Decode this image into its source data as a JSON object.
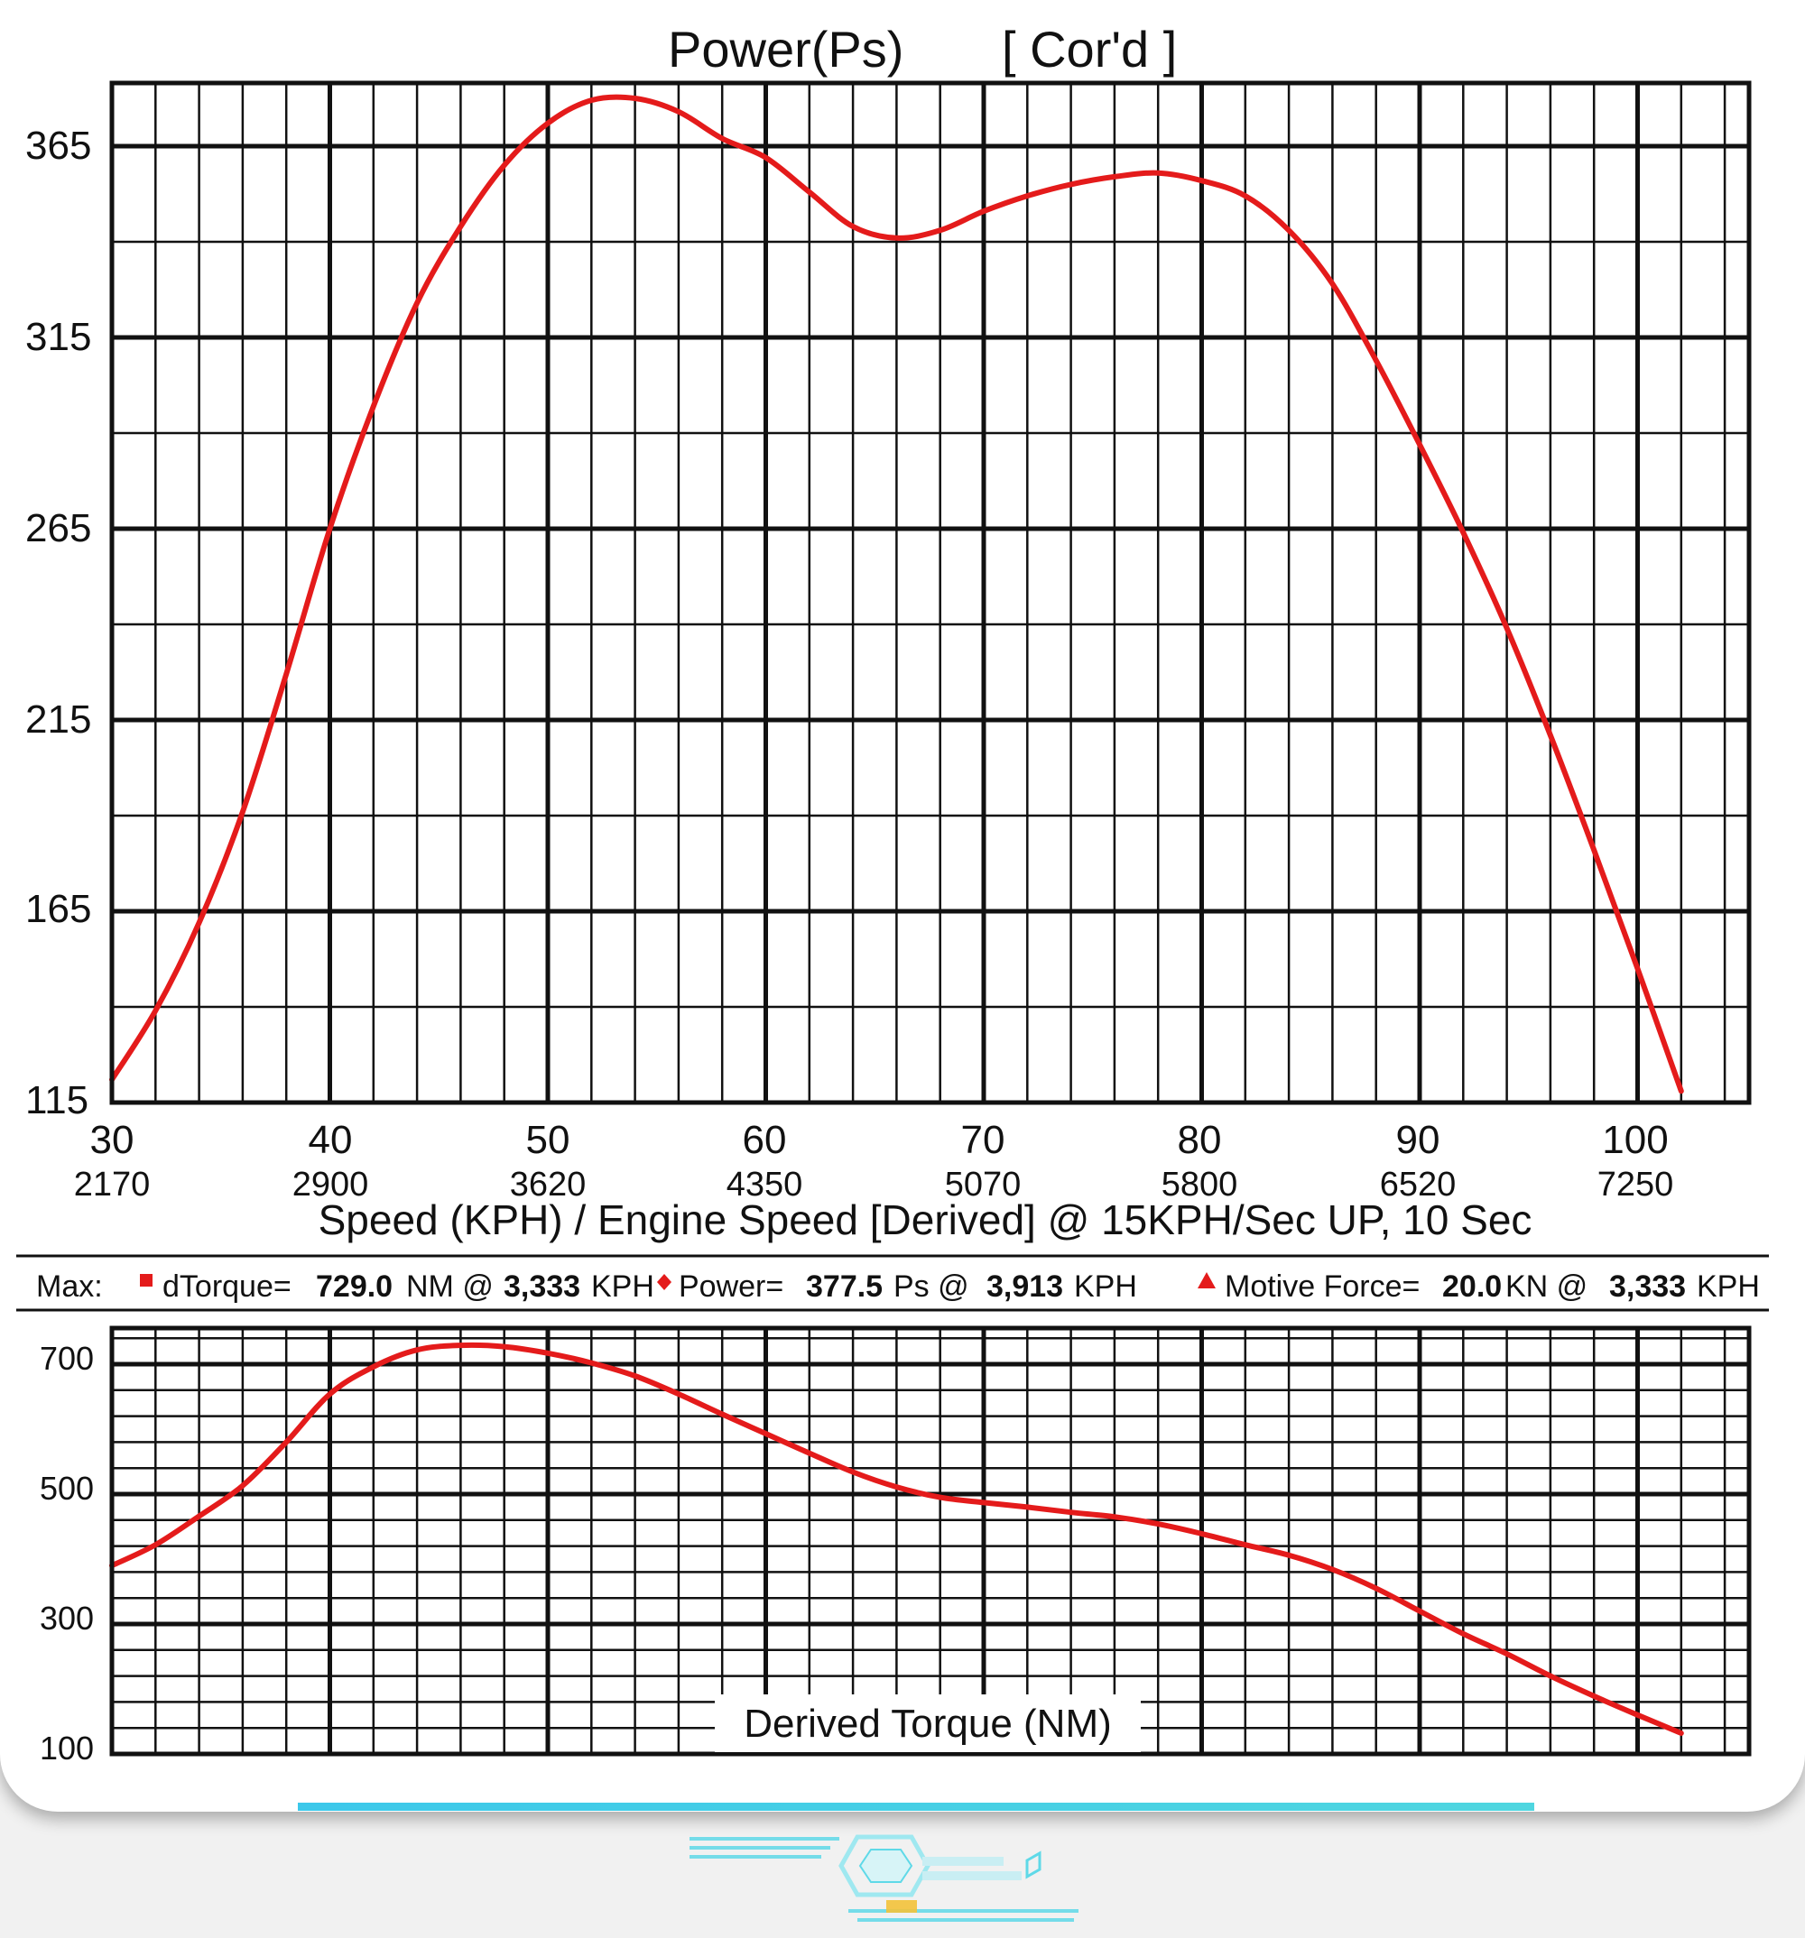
{
  "power_chart": {
    "title_left": "Power(Ps)",
    "title_right": "[ Cor'd ]",
    "y_ticks": [
      "365",
      "315",
      "265",
      "215",
      "165",
      "115"
    ],
    "x_ticks": [
      "30",
      "40",
      "50",
      "60",
      "70",
      "80",
      "90",
      "100"
    ],
    "rpm_ticks": [
      "2170",
      "2900",
      "3620",
      "4350",
      "5070",
      "5800",
      "6520",
      "7250"
    ],
    "x_title": "Speed (KPH) / Engine Speed [Derived] @ 15KPH/Sec UP, 10 Sec"
  },
  "max_line": {
    "label": "Max:",
    "torque_name": "dTorque=",
    "torque_value": "729.0",
    "torque_unit": "NM @",
    "torque_at": "3,333",
    "torque_at_unit": "KPH",
    "power_name": "Power=",
    "power_value": "377.5",
    "power_unit": "Ps @",
    "power_at": "3,913",
    "power_at_unit": "KPH",
    "force_name": "Motive Force=",
    "force_value": "20.0",
    "force_unit": "KN @",
    "force_at": "3,333",
    "force_at_unit": "KPH"
  },
  "torque_chart": {
    "y_ticks": [
      "700",
      "500",
      "300",
      "100"
    ],
    "title": "Derived Torque (NM)"
  },
  "colors": {
    "curve": "#e41b1b",
    "grid": "#111111",
    "accent_bar": "#3cc8ea"
  },
  "chart_data": [
    {
      "type": "line",
      "title": "Power(Ps)",
      "subtitle": "[ Cor'd ]",
      "xlabel": "Speed (KPH) / Engine Speed [Derived] @ 15KPH/Sec UP, 10 Sec",
      "ylabel": "",
      "x_ticks": [
        30,
        40,
        50,
        60,
        70,
        80,
        90,
        100
      ],
      "secondary_x_ticks": [
        2170,
        2900,
        3620,
        4350,
        5070,
        5800,
        6520,
        7250
      ],
      "y_ticks": [
        115,
        165,
        215,
        265,
        315,
        365
      ],
      "xlim": [
        30,
        105
      ],
      "ylim": [
        115,
        380
      ],
      "grid": true,
      "series": [
        {
          "x": [
            30,
            32,
            34,
            36,
            38,
            40,
            42,
            44,
            46,
            48,
            50,
            52,
            54,
            56,
            58,
            60,
            62,
            64,
            66,
            68,
            70,
            72,
            74,
            76,
            78,
            80,
            82,
            84,
            86,
            88,
            90,
            92,
            94,
            96,
            98,
            100,
            102
          ],
          "y": [
            121,
            139,
            162,
            191,
            227,
            265,
            297,
            324,
            344,
            360,
            371,
            377,
            377.5,
            374,
            367,
            362,
            353,
            344,
            341,
            343,
            348,
            352,
            355,
            357,
            358,
            356,
            352,
            343,
            329,
            309,
            287,
            264,
            239,
            211,
            181,
            150,
            118
          ]
        }
      ]
    },
    {
      "type": "line",
      "title": "Derived Torque (NM)",
      "xlabel": "",
      "ylabel": "",
      "y_ticks": [
        100,
        300,
        500,
        700
      ],
      "xlim": [
        30,
        105
      ],
      "ylim": [
        100,
        760
      ],
      "grid": true,
      "series": [
        {
          "x": [
            30,
            32,
            34,
            36,
            38,
            40,
            42,
            44,
            46,
            48,
            50,
            52,
            54,
            56,
            58,
            60,
            62,
            64,
            66,
            68,
            70,
            72,
            74,
            76,
            78,
            80,
            82,
            84,
            86,
            88,
            90,
            92,
            94,
            96,
            98,
            100,
            102
          ],
          "y": [
            390,
            422,
            466,
            513,
            580,
            654,
            696,
            722,
            729,
            727,
            717,
            702,
            682,
            654,
            623,
            593,
            563,
            534,
            511,
            495,
            487,
            480,
            472,
            465,
            454,
            439,
            422,
            406,
            384,
            355,
            320,
            285,
            254,
            220,
            189,
            160,
            132
          ]
        }
      ]
    }
  ]
}
